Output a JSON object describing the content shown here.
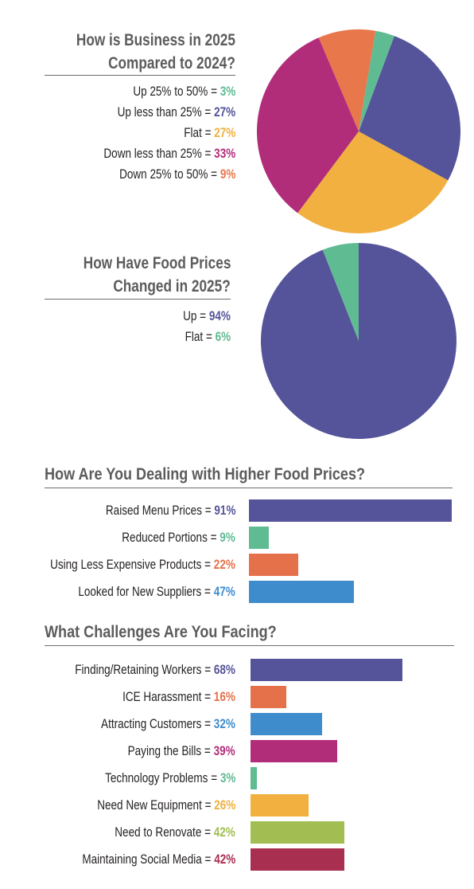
{
  "colors": {
    "purple": "#55549a",
    "orange": "#f1b040",
    "magenta": "#b12d7a",
    "coral": "#e8774c",
    "teal": "#5fbb92",
    "red_orange": "#e5714a",
    "blue": "#3f8ccd",
    "green": "#a2be52",
    "crimson": "#a92f51"
  },
  "chart_data": [
    {
      "type": "pie",
      "title_line1": "How is Business in 2025",
      "title_line2": "Compared to 2024?",
      "slices": [
        {
          "label": "Up 25% to 50% =",
          "value": 3,
          "value_text": "3%",
          "color": "#5fbb92"
        },
        {
          "label": "Up less than 25% =",
          "value": 27,
          "value_text": "27%",
          "color": "#55549a"
        },
        {
          "label": "Flat =",
          "value": 27,
          "value_text": "27%",
          "color": "#f1b040"
        },
        {
          "label": "Down less than 25% =",
          "value": 33,
          "value_text": "33%",
          "color": "#b12d7a"
        },
        {
          "label": "Down 25% to 50% =",
          "value": 9,
          "value_text": "9%",
          "color": "#e8774c"
        }
      ],
      "draw_order": [
        1,
        2,
        3,
        4,
        0
      ],
      "start_angle_deg": 20.5
    },
    {
      "type": "pie",
      "title_line1": "How Have Food Prices",
      "title_line2": "Changed in 2025?",
      "slices": [
        {
          "label": "Up =",
          "value": 94,
          "value_text": "94%",
          "color": "#55549a"
        },
        {
          "label": "Flat =",
          "value": 6,
          "value_text": "6%",
          "color": "#5fbb92"
        }
      ],
      "draw_order": [
        0,
        1
      ],
      "start_angle_deg": 0
    },
    {
      "type": "bar",
      "orientation": "horizontal",
      "title": "How Are You Dealing with Higher Food Prices?",
      "xlim": [
        0,
        91
      ],
      "bars": [
        {
          "label": "Raised Menu Prices =",
          "value": 91,
          "value_text": "91%",
          "color": "#55549a"
        },
        {
          "label": "Reduced Portions =",
          "value": 9,
          "value_text": "9%",
          "color": "#5fbb92"
        },
        {
          "label": "Using Less Expensive Products =",
          "value": 22,
          "value_text": "22%",
          "color": "#e5714a"
        },
        {
          "label": "Looked for New Suppliers =",
          "value": 47,
          "value_text": "47%",
          "color": "#3f8ccd"
        }
      ]
    },
    {
      "type": "bar",
      "orientation": "horizontal",
      "title": "What Challenges Are You Facing?",
      "xlim": [
        0,
        91
      ],
      "bars": [
        {
          "label": "Finding/Retaining Workers =",
          "value": 68,
          "value_text": "68%",
          "color": "#55549a"
        },
        {
          "label": "ICE Harassment =",
          "value": 16,
          "value_text": "16%",
          "color": "#e5714a"
        },
        {
          "label": "Attracting Customers =",
          "value": 32,
          "value_text": "32%",
          "color": "#3f8ccd"
        },
        {
          "label": "Paying the Bills =",
          "value": 39,
          "value_text": "39%",
          "color": "#b12d7a"
        },
        {
          "label": "Technology Problems =",
          "value": 3,
          "value_text": "3%",
          "color": "#5fbb92"
        },
        {
          "label": "Need New Equipment =",
          "value": 26,
          "value_text": "26%",
          "color": "#f1b040"
        },
        {
          "label": "Need to Renovate =",
          "value": 42,
          "value_text": "42%",
          "color": "#a2be52"
        },
        {
          "label": "Maintaining Social Media =",
          "value": 42,
          "value_text": "42%",
          "color": "#a92f51"
        }
      ]
    }
  ]
}
